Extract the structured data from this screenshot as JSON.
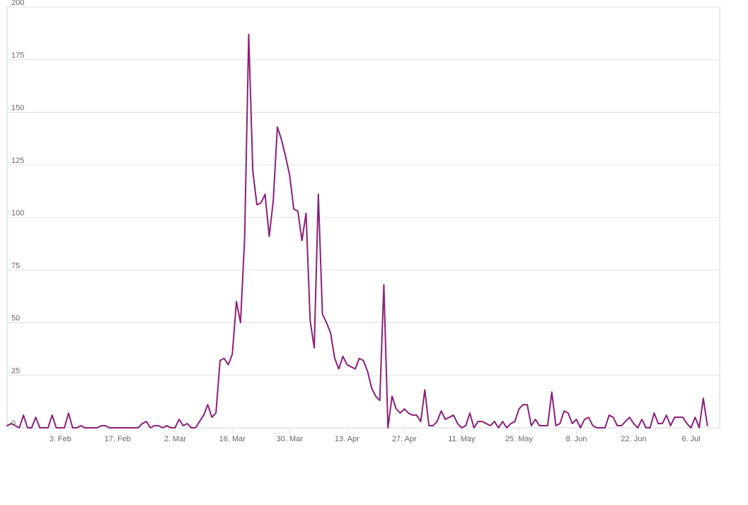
{
  "chart_data": {
    "type": "line",
    "title": "",
    "xlabel": "",
    "ylabel": "",
    "ylim": [
      0,
      200
    ],
    "y_ticks": [
      0,
      25,
      50,
      75,
      100,
      125,
      150,
      175,
      200
    ],
    "x_range": [
      "2020-01-21",
      "2020-07-13"
    ],
    "x_tick_labels": [
      {
        "date": "2020-02-03",
        "label": "3. Feb"
      },
      {
        "date": "2020-02-17",
        "label": "17. Feb"
      },
      {
        "date": "2020-03-02",
        "label": "2. Mar"
      },
      {
        "date": "2020-03-16",
        "label": "16. Mar"
      },
      {
        "date": "2020-03-30",
        "label": "30. Mar"
      },
      {
        "date": "2020-04-13",
        "label": "13. Apr"
      },
      {
        "date": "2020-04-27",
        "label": "27. Apr"
      },
      {
        "date": "2020-05-11",
        "label": "11. May"
      },
      {
        "date": "2020-05-25",
        "label": "25. May"
      },
      {
        "date": "2020-06-08",
        "label": "8. Jun"
      },
      {
        "date": "2020-06-22",
        "label": "22. Jun"
      },
      {
        "date": "2020-07-06",
        "label": "6. Jul"
      }
    ],
    "grid": true,
    "legend": "none",
    "colors": {
      "line": "#8b1f7a",
      "grid": "#e0e0e0",
      "axis": "#ccd6eb",
      "tick_text": "#666666"
    },
    "series": [
      {
        "start_date": "2020-01-21",
        "values": [
          1,
          2,
          1,
          0,
          6,
          0,
          0,
          5,
          0,
          0,
          0,
          6,
          0,
          0,
          0,
          7,
          0,
          0,
          1,
          0,
          0,
          0,
          0,
          1,
          1,
          0,
          0,
          0,
          0,
          0,
          0,
          0,
          0,
          2,
          3,
          0,
          1,
          1,
          0,
          1,
          0,
          0,
          4,
          1,
          2,
          0,
          0,
          3,
          6,
          11,
          5,
          7,
          32,
          33,
          30,
          35,
          60,
          50,
          90,
          187,
          122,
          106,
          107,
          111,
          91,
          108,
          143,
          137,
          129,
          120,
          104,
          103,
          89,
          102,
          51,
          38,
          111,
          54,
          50,
          45,
          33,
          28,
          34,
          30,
          29,
          28,
          33,
          32,
          27,
          19,
          15,
          13,
          68,
          0,
          15,
          9,
          7,
          9,
          7,
          6,
          6,
          3,
          18,
          1,
          1,
          3,
          8,
          4,
          5,
          6,
          2,
          0,
          1,
          7,
          0,
          3,
          3,
          2,
          1,
          3,
          0,
          3,
          0,
          2,
          3,
          9,
          11,
          11,
          1,
          4,
          1,
          1,
          1,
          17,
          1,
          2,
          8,
          7,
          2,
          4,
          0,
          4,
          5,
          1,
          0,
          0,
          0,
          6,
          5,
          1,
          1,
          3,
          5,
          2,
          0,
          4,
          0,
          0,
          7,
          2,
          2,
          6,
          1,
          5,
          5,
          5,
          2,
          0,
          5,
          0,
          14,
          1
        ]
      }
    ]
  }
}
